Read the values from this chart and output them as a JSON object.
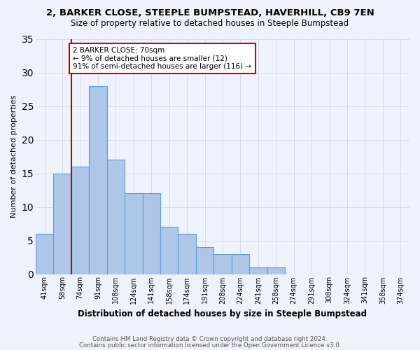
{
  "title": "2, BARKER CLOSE, STEEPLE BUMPSTEAD, HAVERHILL, CB9 7EN",
  "subtitle": "Size of property relative to detached houses in Steeple Bumpstead",
  "xlabel": "Distribution of detached houses by size in Steeple Bumpstead",
  "ylabel": "Number of detached properties",
  "categories": [
    "41sqm",
    "58sqm",
    "74sqm",
    "91sqm",
    "108sqm",
    "124sqm",
    "141sqm",
    "158sqm",
    "174sqm",
    "191sqm",
    "208sqm",
    "224sqm",
    "241sqm",
    "258sqm",
    "274sqm",
    "291sqm",
    "308sqm",
    "324sqm",
    "341sqm",
    "358sqm",
    "374sqm"
  ],
  "values": [
    6,
    15,
    16,
    28,
    17,
    12,
    12,
    7,
    6,
    4,
    3,
    3,
    1,
    1,
    0,
    0,
    0,
    0,
    0,
    0,
    0
  ],
  "bar_color": "#aec6e8",
  "bar_edge_color": "#5a9fd4",
  "highlight_color": "#cc0000",
  "annotation_text": "2 BARKER CLOSE: 70sqm\n← 9% of detached houses are smaller (12)\n91% of semi-detached houses are larger (116) →",
  "annotation_box_color": "#ffffff",
  "annotation_box_edge": "#cc0000",
  "ylim": [
    0,
    35
  ],
  "yticks": [
    0,
    5,
    10,
    15,
    20,
    25,
    30,
    35
  ],
  "grid_color": "#d0d8e8",
  "background_color": "#eef3fb",
  "fig_background": "#eef3fb",
  "footer_line1": "Contains HM Land Registry data © Crown copyright and database right 2024.",
  "footer_line2": "Contains public sector information licensed under the Open Government Licence v3.0."
}
